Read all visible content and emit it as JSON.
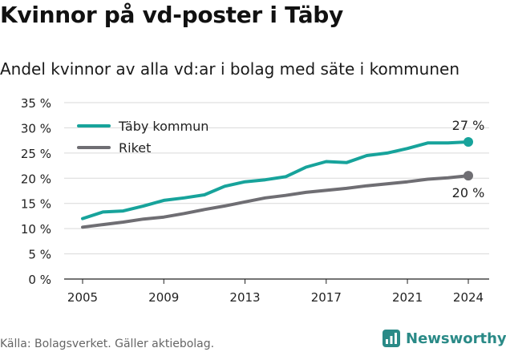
{
  "title": "Kvinnor på vd-poster i Täby",
  "subtitle": "Andel kvinnor av alla vd:ar i bolag med säte i kommunen",
  "source": "Källa: Bolagsverket. Gäller aktiebolag.",
  "brand": "Newsworthy",
  "colors": {
    "teal": "#17a39b",
    "gray": "#6f6e73",
    "brand": "#2a8a87"
  },
  "chart_data": {
    "type": "line",
    "x": [
      2005,
      2006,
      2007,
      2008,
      2009,
      2010,
      2011,
      2012,
      2013,
      2014,
      2015,
      2016,
      2017,
      2018,
      2019,
      2020,
      2021,
      2022,
      2023,
      2024
    ],
    "series": [
      {
        "name": "Täby kommun",
        "color": "#17a39b",
        "values": [
          12.0,
          13.3,
          13.5,
          14.5,
          15.6,
          16.1,
          16.7,
          18.4,
          19.3,
          19.7,
          20.3,
          22.2,
          23.3,
          23.1,
          24.5,
          25.0,
          25.9,
          27.0,
          27.0,
          27.2
        ],
        "end_label": "27 %"
      },
      {
        "name": "Riket",
        "color": "#6f6e73",
        "values": [
          10.3,
          10.8,
          11.3,
          11.9,
          12.3,
          13.0,
          13.8,
          14.5,
          15.3,
          16.1,
          16.6,
          17.2,
          17.6,
          18.0,
          18.5,
          18.9,
          19.3,
          19.8,
          20.1,
          20.5
        ],
        "end_label": "20 %"
      }
    ],
    "x_ticks": [
      "2005",
      "2009",
      "2013",
      "2017",
      "2021",
      "2024"
    ],
    "y_ticks": [
      "0 %",
      "5 %",
      "10 %",
      "15 %",
      "20 %",
      "25 %",
      "30 %",
      "35 %"
    ],
    "ylim": [
      0,
      35
    ],
    "xlim": [
      2005,
      2024
    ],
    "grid": true,
    "legend": "top-left"
  }
}
